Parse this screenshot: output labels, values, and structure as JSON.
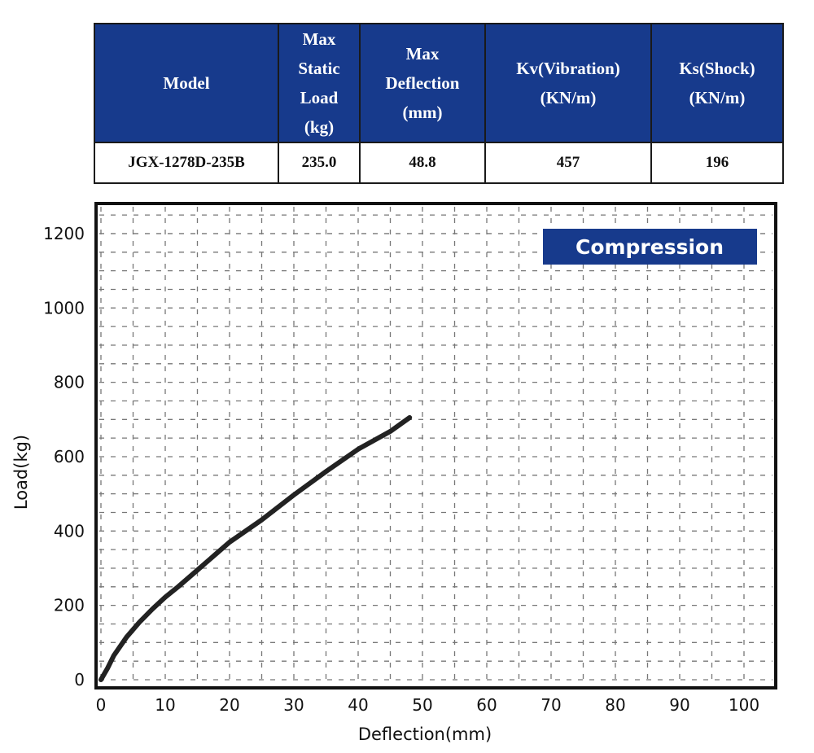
{
  "spec_table": {
    "headers": [
      "Model",
      "Max\nStatic\nLoad\n(kg)",
      "Max\nDeflection\n(mm)",
      "Kv(Vibration)\n(KN/m)",
      "Ks(Shock)\n(KN/m)"
    ],
    "row": [
      "JGX-1278D-235B",
      "235.0",
      "48.8",
      "457",
      "196"
    ]
  },
  "colors": {
    "header_bg": "#173a8c",
    "badge_bg": "#173a8c",
    "curve": "#222222",
    "grid": "#777777"
  },
  "chart_data": {
    "type": "line",
    "xlabel": "Deflection(mm)",
    "ylabel": "Load(kg)",
    "badge": "Compression",
    "xlim": [
      0,
      105
    ],
    "ylim": [
      0,
      1250
    ],
    "xticks": [
      "0",
      "10",
      "20",
      "30",
      "40",
      "50",
      "60",
      "70",
      "80",
      "90",
      "100"
    ],
    "yticks": [
      "0",
      "200",
      "400",
      "600",
      "800",
      "1000",
      "1200"
    ],
    "grid": true,
    "series": [
      {
        "values": [
          [
            0,
            0
          ],
          [
            1,
            30
          ],
          [
            2,
            65
          ],
          [
            4,
            115
          ],
          [
            6,
            155
          ],
          [
            8,
            190
          ],
          [
            10,
            222
          ],
          [
            12,
            250
          ],
          [
            15,
            295
          ],
          [
            18,
            340
          ],
          [
            20,
            370
          ],
          [
            25,
            430
          ],
          [
            30,
            497
          ],
          [
            35,
            560
          ],
          [
            40,
            620
          ],
          [
            45,
            668
          ],
          [
            48,
            705
          ]
        ]
      }
    ]
  }
}
